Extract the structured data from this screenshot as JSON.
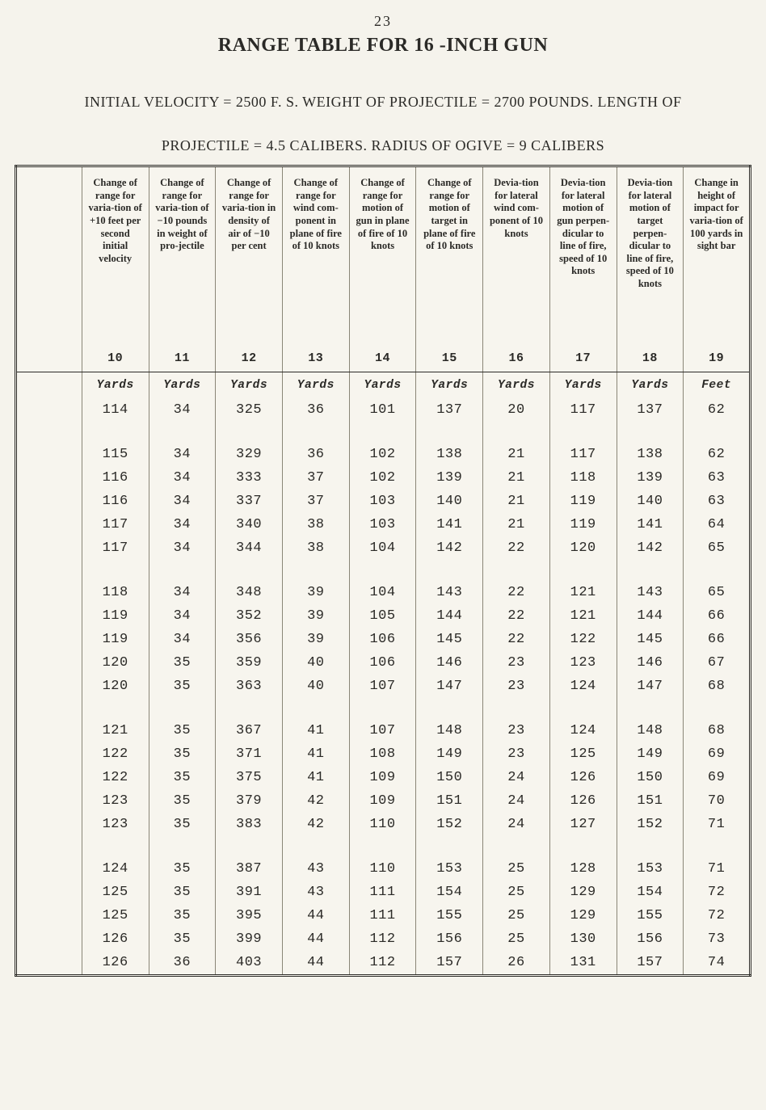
{
  "page_number": "23",
  "title": "RANGE TABLE FOR  16 -INCH GUN",
  "subtitle_line1": "INITIAL VELOCITY = 2500  F. S.  WEIGHT OF PROJECTILE = 2700  POUNDS.  LENGTH OF",
  "subtitle_line2": "PROJECTILE  =  4.5  CALIBERS.  RADIUS OF OGIVE  =  9    CALIBERS",
  "table": {
    "type": "table",
    "background_color": "#f7f5ee",
    "border_color": "#2b2a27",
    "gridline_color": "#8a8677",
    "text_color": "#2b2a27",
    "header_fontsize_pt": 9,
    "body_fontsize_pt": 12,
    "body_font_family": "Courier",
    "headers": [
      "Change of range for varia-tion of +10 feet per second initial velocity",
      "Change of range for varia-tion of −10 pounds in weight of pro-jectile",
      "Change of range for varia-tion in density of air of −10 per cent",
      "Change of range for wind com-ponent in plane of fire of 10 knots",
      "Change of range for motion of gun in plane of fire of 10 knots",
      "Change of range for motion of target in plane of fire of 10 knots",
      "Devia-tion for lateral wind com-ponent of 10 knots",
      "Devia-tion for lateral motion of gun perpen-dicular to line of fire, speed of 10 knots",
      "Devia-tion for lateral motion of target perpen-dicular to line of fire, speed of 10 knots",
      "Change in height of impact for varia-tion of 100 yards in sight bar"
    ],
    "col_numbers": [
      "10",
      "11",
      "12",
      "13",
      "14",
      "15",
      "16",
      "17",
      "18",
      "19"
    ],
    "units": [
      "Yards",
      "Yards",
      "Yards",
      "Yards",
      "Yards",
      "Yards",
      "Yards",
      "Yards",
      "Yards",
      "Feet"
    ],
    "row_groups": [
      [
        [
          "114",
          "34",
          "325",
          "36",
          "101",
          "137",
          "20",
          "117",
          "137",
          "62"
        ]
      ],
      [
        [
          "115",
          "34",
          "329",
          "36",
          "102",
          "138",
          "21",
          "117",
          "138",
          "62"
        ],
        [
          "116",
          "34",
          "333",
          "37",
          "102",
          "139",
          "21",
          "118",
          "139",
          "63"
        ],
        [
          "116",
          "34",
          "337",
          "37",
          "103",
          "140",
          "21",
          "119",
          "140",
          "63"
        ],
        [
          "117",
          "34",
          "340",
          "38",
          "103",
          "141",
          "21",
          "119",
          "141",
          "64"
        ],
        [
          "117",
          "34",
          "344",
          "38",
          "104",
          "142",
          "22",
          "120",
          "142",
          "65"
        ]
      ],
      [
        [
          "118",
          "34",
          "348",
          "39",
          "104",
          "143",
          "22",
          "121",
          "143",
          "65"
        ],
        [
          "119",
          "34",
          "352",
          "39",
          "105",
          "144",
          "22",
          "121",
          "144",
          "66"
        ],
        [
          "119",
          "34",
          "356",
          "39",
          "106",
          "145",
          "22",
          "122",
          "145",
          "66"
        ],
        [
          "120",
          "35",
          "359",
          "40",
          "106",
          "146",
          "23",
          "123",
          "146",
          "67"
        ],
        [
          "120",
          "35",
          "363",
          "40",
          "107",
          "147",
          "23",
          "124",
          "147",
          "68"
        ]
      ],
      [
        [
          "121",
          "35",
          "367",
          "41",
          "107",
          "148",
          "23",
          "124",
          "148",
          "68"
        ],
        [
          "122",
          "35",
          "371",
          "41",
          "108",
          "149",
          "23",
          "125",
          "149",
          "69"
        ],
        [
          "122",
          "35",
          "375",
          "41",
          "109",
          "150",
          "24",
          "126",
          "150",
          "69"
        ],
        [
          "123",
          "35",
          "379",
          "42",
          "109",
          "151",
          "24",
          "126",
          "151",
          "70"
        ],
        [
          "123",
          "35",
          "383",
          "42",
          "110",
          "152",
          "24",
          "127",
          "152",
          "71"
        ]
      ],
      [
        [
          "124",
          "35",
          "387",
          "43",
          "110",
          "153",
          "25",
          "128",
          "153",
          "71"
        ],
        [
          "125",
          "35",
          "391",
          "43",
          "111",
          "154",
          "25",
          "129",
          "154",
          "72"
        ],
        [
          "125",
          "35",
          "395",
          "44",
          "111",
          "155",
          "25",
          "129",
          "155",
          "72"
        ],
        [
          "126",
          "35",
          "399",
          "44",
          "112",
          "156",
          "25",
          "130",
          "156",
          "73"
        ],
        [
          "126",
          "36",
          "403",
          "44",
          "112",
          "157",
          "26",
          "131",
          "157",
          "74"
        ]
      ]
    ]
  }
}
